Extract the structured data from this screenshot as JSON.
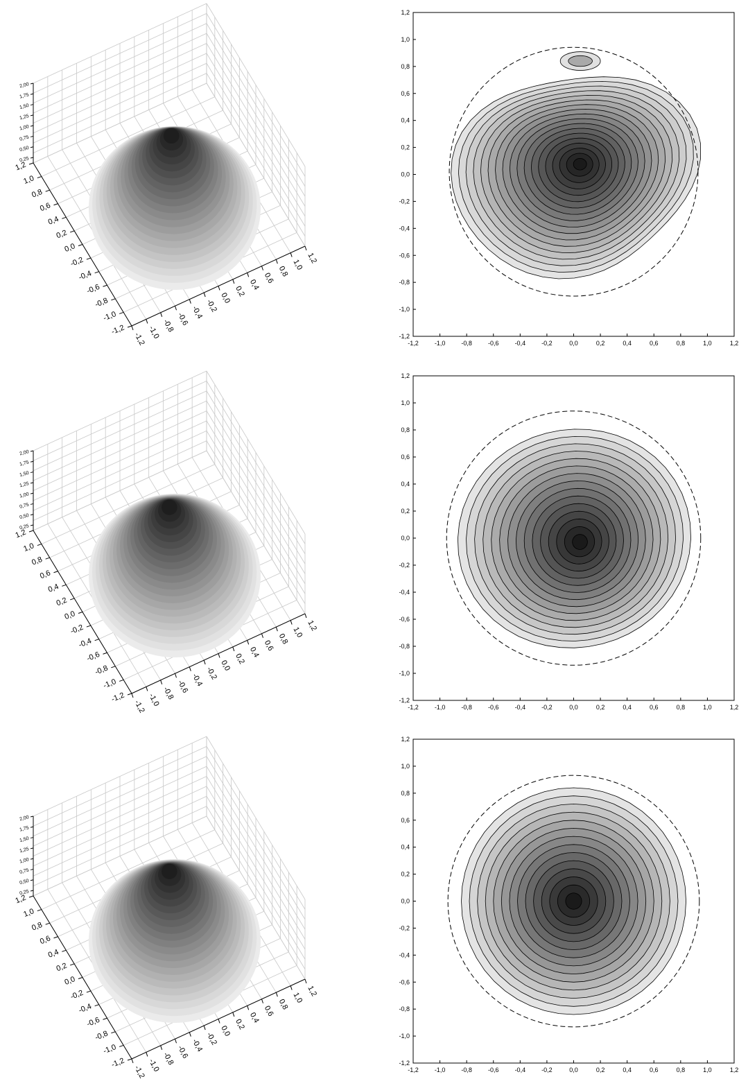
{
  "chart_data": [
    {
      "type": "surface3d",
      "panel": "row-1-left",
      "x_ticks": [
        "-1,2",
        "-1,0",
        "-0,8",
        "-0,6",
        "-0,4",
        "-0,2",
        "0,0",
        "0,2",
        "0,4",
        "0,6",
        "0,8",
        "1,0",
        "1,2"
      ],
      "y_ticks": [
        "-1,2",
        "-1,0",
        "-0,8",
        "-0,6",
        "-0,4",
        "-0,2",
        "0,0",
        "0,2",
        "0,4",
        "0,6",
        "0,8",
        "1,0",
        "1,2"
      ],
      "z_ticks": [
        "0,25",
        "0,50",
        "0,75",
        "1,00",
        "1,25",
        "1,50",
        "1,75",
        "2,00"
      ],
      "xlim": [
        -1.2,
        1.2
      ],
      "ylim": [
        -1.2,
        1.2
      ],
      "zlim": [
        0.25,
        2.0
      ],
      "grid": true,
      "colormap": "grayscale",
      "peak": {
        "x": 0.05,
        "y": 0.1
      }
    },
    {
      "type": "contour",
      "panel": "row-1-right",
      "x_ticks": [
        "-1,2",
        "-1,0",
        "-0,8",
        "-0,6",
        "-0,4",
        "-0,2",
        "0,0",
        "0,2",
        "0,4",
        "0,6",
        "0,8",
        "1,0",
        "1,2"
      ],
      "y_ticks": [
        "-1,2",
        "-1,0",
        "-0,8",
        "-0,6",
        "-0,4",
        "-0,2",
        "0,0",
        "0,2",
        "0,4",
        "0,6",
        "0,8",
        "1,0",
        "1,2"
      ],
      "xlim": [
        -1.2,
        1.2
      ],
      "ylim": [
        -1.2,
        1.2
      ],
      "levels": 18,
      "peak": {
        "x": 0.05,
        "y": 0.08
      },
      "secondary_peak": {
        "x": 0.05,
        "y": 0.84
      },
      "boundary_circle": {
        "cx": 0.0,
        "cy": 0.02,
        "r": 0.93
      },
      "grid": false
    },
    {
      "type": "surface3d",
      "panel": "row-2-left",
      "x_ticks": [
        "-1,2",
        "-1,0",
        "-0,8",
        "-0,6",
        "-0,4",
        "-0,2",
        "0,0",
        "0,2",
        "0,4",
        "0,6",
        "0,8",
        "1,0",
        "1,2"
      ],
      "y_ticks": [
        "-1,2",
        "-1,0",
        "-0,8",
        "-0,6",
        "-0,4",
        "-0,2",
        "0,0",
        "0,2",
        "0,4",
        "0,6",
        "0,8",
        "1,0",
        "1,2"
      ],
      "z_ticks": [
        "0,25",
        "0,50",
        "0,75",
        "1,00",
        "1,25",
        "1,50",
        "1,75",
        "2,00"
      ],
      "xlim": [
        -1.2,
        1.2
      ],
      "ylim": [
        -1.2,
        1.2
      ],
      "zlim": [
        0.25,
        2.0
      ],
      "grid": true,
      "colormap": "grayscale",
      "peak": {
        "x": 0.0,
        "y": -0.05
      }
    },
    {
      "type": "contour",
      "panel": "row-2-right",
      "x_ticks": [
        "-1,2",
        "-1,0",
        "-0,8",
        "-0,6",
        "-0,4",
        "-0,2",
        "0,0",
        "0,2",
        "0,4",
        "0,6",
        "0,8",
        "1,0",
        "1,2"
      ],
      "y_ticks": [
        "-1,2",
        "-1,0",
        "-0,8",
        "-0,6",
        "-0,4",
        "-0,2",
        "0,0",
        "0,2",
        "0,4",
        "0,6",
        "0,8",
        "1,0",
        "1,2"
      ],
      "xlim": [
        -1.2,
        1.2
      ],
      "ylim": [
        -1.2,
        1.2
      ],
      "levels": 15,
      "peak": {
        "x": 0.05,
        "y": -0.03
      },
      "boundary_circle": {
        "cx": 0.0,
        "cy": 0.0,
        "r": 0.95
      },
      "grid": false
    },
    {
      "type": "surface3d",
      "panel": "row-3-left",
      "x_ticks": [
        "-1,2",
        "-1,0",
        "-0,8",
        "-0,6",
        "-0,4",
        "-0,2",
        "0,0",
        "0,2",
        "0,4",
        "0,6",
        "0,8",
        "1,0",
        "1,2"
      ],
      "y_ticks": [
        "-1,2",
        "-1,0",
        "-0,8",
        "-0,6",
        "-0,4",
        "-0,2",
        "0,0",
        "0,2",
        "0,4",
        "0,6",
        "0,8",
        "1,0",
        "1,2"
      ],
      "z_ticks": [
        "0,25",
        "0,50",
        "0,75",
        "1,00",
        "1,25",
        "1,50",
        "1,75",
        "2,00"
      ],
      "xlim": [
        -1.2,
        1.2
      ],
      "ylim": [
        -1.2,
        1.2
      ],
      "zlim": [
        0.25,
        2.0
      ],
      "grid": true,
      "colormap": "grayscale",
      "peak": {
        "x": 0.0,
        "y": 0.0
      }
    },
    {
      "type": "contour",
      "panel": "row-3-right",
      "x_ticks": [
        "-1,2",
        "-1,0",
        "-0,8",
        "-0,6",
        "-0,4",
        "-0,2",
        "0,0",
        "0,2",
        "0,4",
        "0,6",
        "0,8",
        "1,0",
        "1,2"
      ],
      "y_ticks": [
        "-1,2",
        "-1,0",
        "-0,8",
        "-0,6",
        "-0,4",
        "-0,2",
        "0,0",
        "0,2",
        "0,4",
        "0,6",
        "0,8",
        "1,0",
        "1,2"
      ],
      "xlim": [
        -1.2,
        1.2
      ],
      "ylim": [
        -1.2,
        1.2
      ],
      "levels": 14,
      "peak": {
        "x": 0.0,
        "y": 0.0
      },
      "boundary_circle": {
        "cx": 0.0,
        "cy": 0.0,
        "r": 0.94
      },
      "grid": false
    }
  ]
}
